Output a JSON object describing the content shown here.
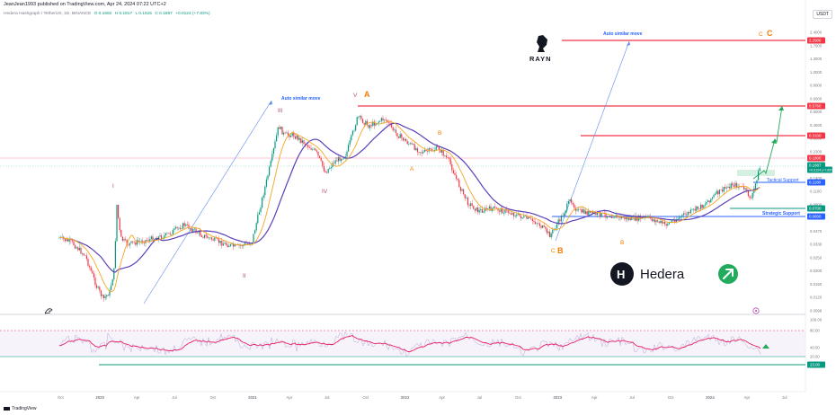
{
  "header": {
    "publisher": "JeanJean1993 published on TradingView.com, Apr 24, 2024 07:22 UTC+2",
    "symbol": "Hedera Hashgraph / TetherUS, 1D, BINANCE",
    "open": "O 0.1582",
    "high": "H 0.1817",
    "low": "L 0.1515",
    "close": "C 0.1687",
    "change": "+0.0124 (+7.83%)"
  },
  "currency": "USDT",
  "price_axis": {
    "ticks": [
      "2.4000",
      "1.7000",
      "1.3000",
      "1.0000",
      "0.8000",
      "0.6000",
      "0.5000",
      "0.4000",
      "0.3000",
      "0.2300",
      "0.1800",
      "0.1400",
      "0.1100",
      "0.0800",
      "0.0610",
      "0.0470",
      "0.0330",
      "0.0250",
      "0.0200",
      "0.0150",
      "0.0120",
      "0.0098"
    ],
    "badges": [
      {
        "text": "2.2900",
        "color": "#f23645"
      },
      {
        "text": "0.5760",
        "color": "#f23645"
      },
      {
        "text": "0.3100",
        "color": "#f23645"
      },
      {
        "text": "0.1800",
        "color": "#f23645"
      },
      {
        "text": "0.1687",
        "color": "#089981"
      },
      {
        "text": "+0.0124 (+7.83%)",
        "color": "#089981"
      },
      {
        "text": "0.1180",
        "color": "#2962ff"
      },
      {
        "text": "0.0700",
        "color": "#089981"
      },
      {
        "text": "0.0600",
        "color": "#2962ff"
      }
    ]
  },
  "rsi_axis": {
    "ticks": [
      "100.00",
      "80.00",
      "40.00",
      "20.00"
    ],
    "badge": "23.00",
    "badge_color": "#089981"
  },
  "time_axis": [
    "Oct",
    "2020",
    "Apr",
    "Jul",
    "Oct",
    "2021",
    "Apr",
    "Jul",
    "Oct",
    "2022",
    "Apr",
    "Jul",
    "Oct",
    "2023",
    "Apr",
    "Jul",
    "Oct",
    "2024",
    "Apr",
    "Jul"
  ],
  "annotations": {
    "auto_move_1": "Auto similar move",
    "auto_move_2": "Auto similar move",
    "wave_I": "I",
    "wave_II": "II",
    "wave_III": "III",
    "wave_IV": "IV",
    "wave_V": "V",
    "wave_A_big": "A",
    "wave_B_small": "B",
    "wave_a_small": "A",
    "wave_C_small": "C",
    "wave_B_big": "B",
    "wave_B_lower": "B",
    "wave_C_top_small": "C",
    "wave_C_top_big": "C",
    "tactical_support": "Tactical Support",
    "strategic_support": "Strategic Support"
  },
  "logos": {
    "rayn": "RAYN",
    "hedera": "Hedera",
    "hedera_letter": "H"
  },
  "footer": "TradingView",
  "colors": {
    "resistance": "#f23645",
    "support_green": "#089981",
    "support_blue": "#2962ff",
    "wave_orange": "#f57c00",
    "ma_purple": "#5b3fb8",
    "ma_orange": "#f5a623",
    "rsi": "#e91e63"
  }
}
